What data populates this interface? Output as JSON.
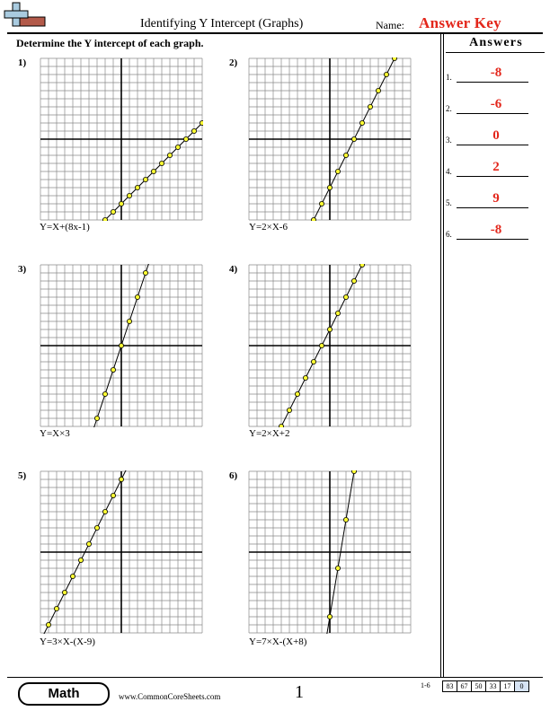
{
  "header": {
    "title": "Identifying Y Intercept (Graphs)",
    "name_label": "Name:",
    "answer_key": "Answer Key"
  },
  "instructions": "Determine the Y intercept of each graph.",
  "answers_panel": {
    "heading": "Answers",
    "items": [
      {
        "num": "1.",
        "value": "-8"
      },
      {
        "num": "2.",
        "value": "-6"
      },
      {
        "num": "3.",
        "value": "0"
      },
      {
        "num": "4.",
        "value": "2"
      },
      {
        "num": "5.",
        "value": "9"
      },
      {
        "num": "6.",
        "value": "-8"
      }
    ]
  },
  "problems": [
    {
      "label": "1)",
      "equation": "Y=X+(8x-1)",
      "slope": 1,
      "intercept": -8
    },
    {
      "label": "2)",
      "equation": "Y=2×X-6",
      "slope": 2,
      "intercept": -6
    },
    {
      "label": "3)",
      "equation": "Y=X×3",
      "slope": 3,
      "intercept": 0
    },
    {
      "label": "4)",
      "equation": "Y=2×X+2",
      "slope": 2,
      "intercept": 2
    },
    {
      "label": "5)",
      "equation": "Y=3×X-(X-9)",
      "slope": 2,
      "intercept": 9
    },
    {
      "label": "6)",
      "equation": "Y=7×X-(X+8)",
      "slope": 6,
      "intercept": -8
    }
  ],
  "grid": {
    "xmin": -10,
    "xmax": 10,
    "ymin": -10,
    "ymax": 10
  },
  "footer": {
    "badge": "Math",
    "website": "www.CommonCoreSheets.com",
    "page": "1",
    "score_range": "1-6",
    "scores": [
      "83",
      "67",
      "50",
      "33",
      "17",
      "0"
    ]
  },
  "colors": {
    "accent_red": "#e3261b",
    "point_fill": "#ffff33",
    "grid_line": "#8a8a8a",
    "logo_blue": "#a9cbe0",
    "logo_brown": "#b35a4a"
  }
}
